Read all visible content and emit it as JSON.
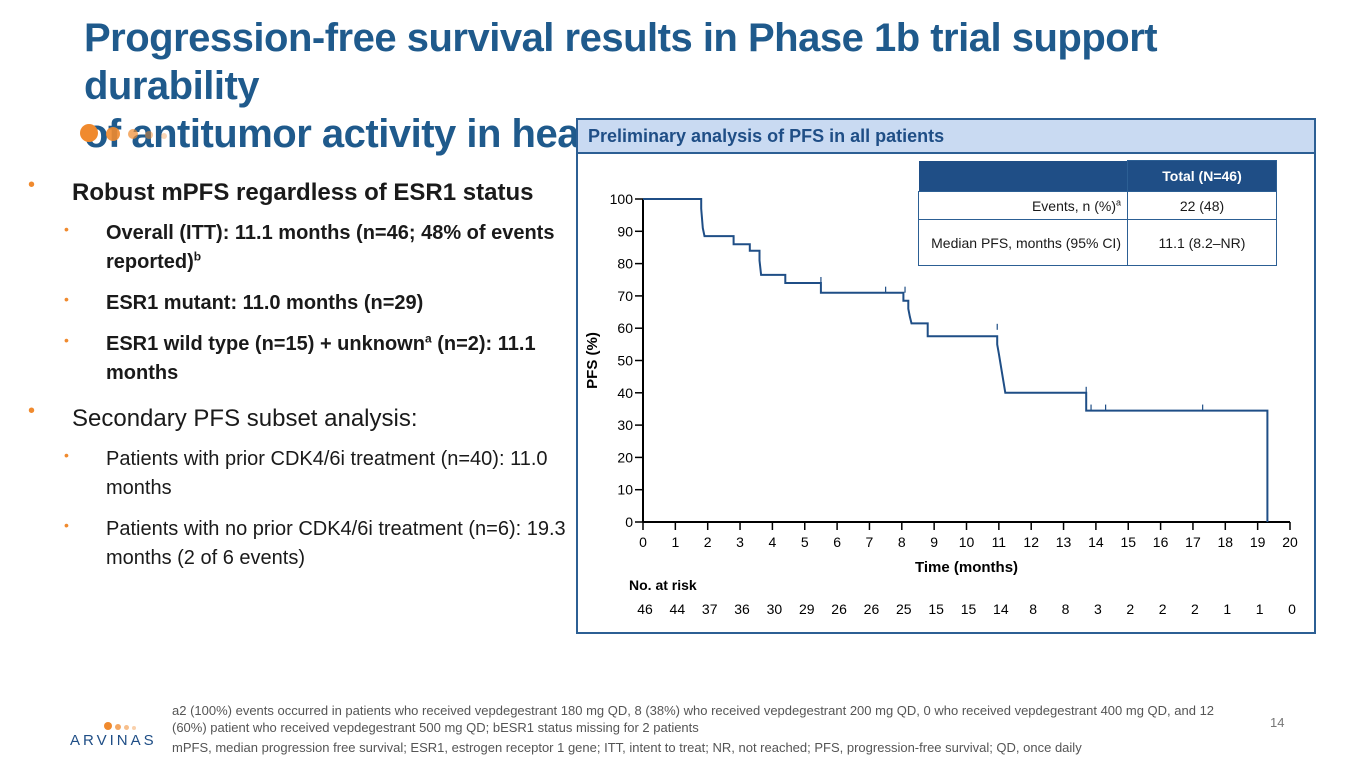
{
  "title": {
    "line1": "Progression-free survival results in Phase 1b trial support durability",
    "line2": "of antitumor activity in heavily pre-treated patients"
  },
  "bullets": {
    "b1": {
      "text": "Robust mPFS regardless of ESR1 status"
    },
    "b1_1": {
      "text": "Overall (ITT): 11.1 months (n=46; 48% of events reported)",
      "sup": "b"
    },
    "b1_2": {
      "text": "ESR1 mutant: 11.0 months (n=29)"
    },
    "b1_3": {
      "pre": "ESR1 wild type (n=15) + unknown",
      "sup": "a",
      "post": " (n=2): 11.1 months"
    },
    "b2": {
      "text": "Secondary PFS subset analysis:"
    },
    "b2_1": {
      "text": "Patients with prior CDK4/6i treatment (n=40): 11.0 months"
    },
    "b2_2": {
      "text": "Patients with no prior CDK4/6i treatment (n=6): 19.3 months (2 of 6 events)"
    }
  },
  "panel": {
    "title": "Preliminary analysis of PFS in all patients"
  },
  "stats_table": {
    "header": "Total (N=46)",
    "rows": [
      {
        "label": "Events, n (%)",
        "sup": "a",
        "value": "22 (48)"
      },
      {
        "label": "Median PFS, months (95% CI)",
        "value": "11.1 (8.2–NR)"
      }
    ]
  },
  "chart_data": {
    "type": "line",
    "subtype": "kaplan-meier step",
    "xlabel": "Time (months)",
    "ylabel": "PFS (%)",
    "xlim": [
      0,
      20
    ],
    "ylim": [
      0,
      100
    ],
    "x_ticks": [
      "0",
      "1",
      "2",
      "3",
      "4",
      "5",
      "6",
      "7",
      "8",
      "9",
      "10",
      "11",
      "12",
      "13",
      "14",
      "15",
      "16",
      "17",
      "18",
      "19",
      "20"
    ],
    "y_ticks": [
      "0",
      "10",
      "20",
      "30",
      "40",
      "50",
      "60",
      "70",
      "80",
      "90",
      "100"
    ],
    "series": [
      {
        "name": "All patients",
        "steps": [
          [
            0,
            100
          ],
          [
            1.8,
            100
          ],
          [
            1.8,
            97
          ],
          [
            1.85,
            91
          ],
          [
            1.9,
            88.5
          ],
          [
            2.8,
            88.5
          ],
          [
            2.8,
            86
          ],
          [
            3.3,
            86
          ],
          [
            3.3,
            84
          ],
          [
            3.6,
            84
          ],
          [
            3.6,
            81
          ],
          [
            3.65,
            76.5
          ],
          [
            4.4,
            76.5
          ],
          [
            4.4,
            74
          ],
          [
            5.5,
            74
          ],
          [
            5.5,
            71
          ],
          [
            8.05,
            71
          ],
          [
            8.05,
            68.5
          ],
          [
            8.2,
            68.5
          ],
          [
            8.2,
            66
          ],
          [
            8.25,
            63.5
          ],
          [
            8.3,
            61.5
          ],
          [
            8.8,
            61.5
          ],
          [
            8.8,
            57.5
          ],
          [
            10.95,
            57.5
          ],
          [
            10.95,
            55
          ],
          [
            11.0,
            52
          ],
          [
            11.05,
            49
          ],
          [
            11.1,
            46
          ],
          [
            11.15,
            43
          ],
          [
            11.2,
            40
          ],
          [
            13.7,
            40
          ],
          [
            13.7,
            34.5
          ],
          [
            19.3,
            34.5
          ],
          [
            19.3,
            0
          ]
        ],
        "censor_marks": [
          [
            5.5,
            74
          ],
          [
            7.5,
            71
          ],
          [
            8.1,
            71
          ],
          [
            10.95,
            59.5
          ],
          [
            13.7,
            40
          ],
          [
            13.85,
            34.5
          ],
          [
            14.3,
            34.5
          ],
          [
            17.3,
            34.5
          ]
        ]
      }
    ],
    "risk_table": {
      "label": "No. at risk",
      "times": [
        0,
        1,
        2,
        3,
        4,
        5,
        6,
        7,
        8,
        9,
        10,
        11,
        12,
        13,
        14,
        15,
        16,
        17,
        18,
        19,
        20
      ],
      "values": [
        "46",
        "44",
        "37",
        "36",
        "30",
        "29",
        "26",
        "26",
        "25",
        "15",
        "15",
        "14",
        "8",
        "8",
        "3",
        "2",
        "2",
        "2",
        "1",
        "1",
        "0"
      ]
    }
  },
  "footnotes": {
    "line1": "a2 (100%) events occurred in patients who received vepdegestrant 180 mg QD, 8 (38%) who received vepdegestrant 200 mg QD, 0 who received vepdegestrant 400 mg QD, and 12 (60%) patient who received vepdegestrant 500 mg QD; bESR1 status missing for 2 patients",
    "line2": "mPFS, median progression free survival; ESR1, estrogen receptor 1 gene; ITT, intent to treat; NR, not reached; PFS, progression-free survival; QD, once daily"
  },
  "page_number": "14",
  "logo": {
    "wordmark": "ARVINAS"
  },
  "colors": {
    "title": "#1f5a8c",
    "accent": "#f08a2e",
    "panel_border": "#2c5f94",
    "panel_header_bg": "#c9daf2",
    "curve": "#1f4e86"
  }
}
